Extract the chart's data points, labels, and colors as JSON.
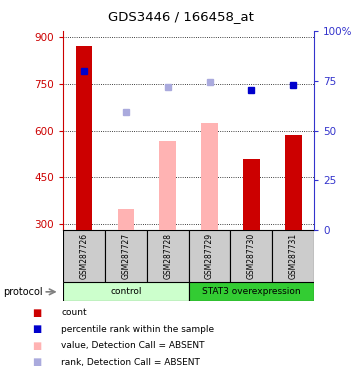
{
  "title": "GDS3446 / 166458_at",
  "samples": [
    "GSM287726",
    "GSM287727",
    "GSM287728",
    "GSM287729",
    "GSM287730",
    "GSM287731"
  ],
  "ylim_left": [
    280,
    920
  ],
  "ylim_right": [
    0,
    100
  ],
  "yticks_left": [
    300,
    450,
    600,
    750,
    900
  ],
  "yticks_right": [
    0,
    25,
    50,
    75,
    100
  ],
  "left_tick_labels": [
    "300",
    "450",
    "600",
    "750",
    "900"
  ],
  "right_tick_labels": [
    "0",
    "25",
    "50",
    "75",
    "100%"
  ],
  "bar_values": [
    870,
    null,
    null,
    null,
    510,
    585
  ],
  "bar_color_red": "#cc0000",
  "bar_pink_values": [
    null,
    350,
    565,
    625,
    null,
    null
  ],
  "bar_color_pink": "#ffb3b3",
  "dot_blue_values": [
    790,
    null,
    null,
    null,
    730,
    745
  ],
  "dot_blue_color": "#0000cc",
  "dot_lightblue_values": [
    null,
    660,
    740,
    755,
    null,
    null
  ],
  "dot_lightblue_color": "#aaaadd",
  "protocol_groups": [
    {
      "label": "control",
      "start": 0,
      "end": 3,
      "color": "#ccffcc"
    },
    {
      "label": "STAT3 overexpression",
      "start": 3,
      "end": 6,
      "color": "#33cc33"
    }
  ],
  "protocol_label": "protocol",
  "legend_items": [
    {
      "color": "#cc0000",
      "label": "count"
    },
    {
      "color": "#0000cc",
      "label": "percentile rank within the sample"
    },
    {
      "color": "#ffb3b3",
      "label": "value, Detection Call = ABSENT"
    },
    {
      "color": "#aaaadd",
      "label": "rank, Detection Call = ABSENT"
    }
  ],
  "bg_color": "#ffffff",
  "left_axis_color": "#cc0000",
  "right_axis_color": "#3333cc",
  "bar_bottom": 280,
  "sample_box_color": "#cccccc",
  "figsize": [
    3.61,
    3.84
  ],
  "dpi": 100
}
